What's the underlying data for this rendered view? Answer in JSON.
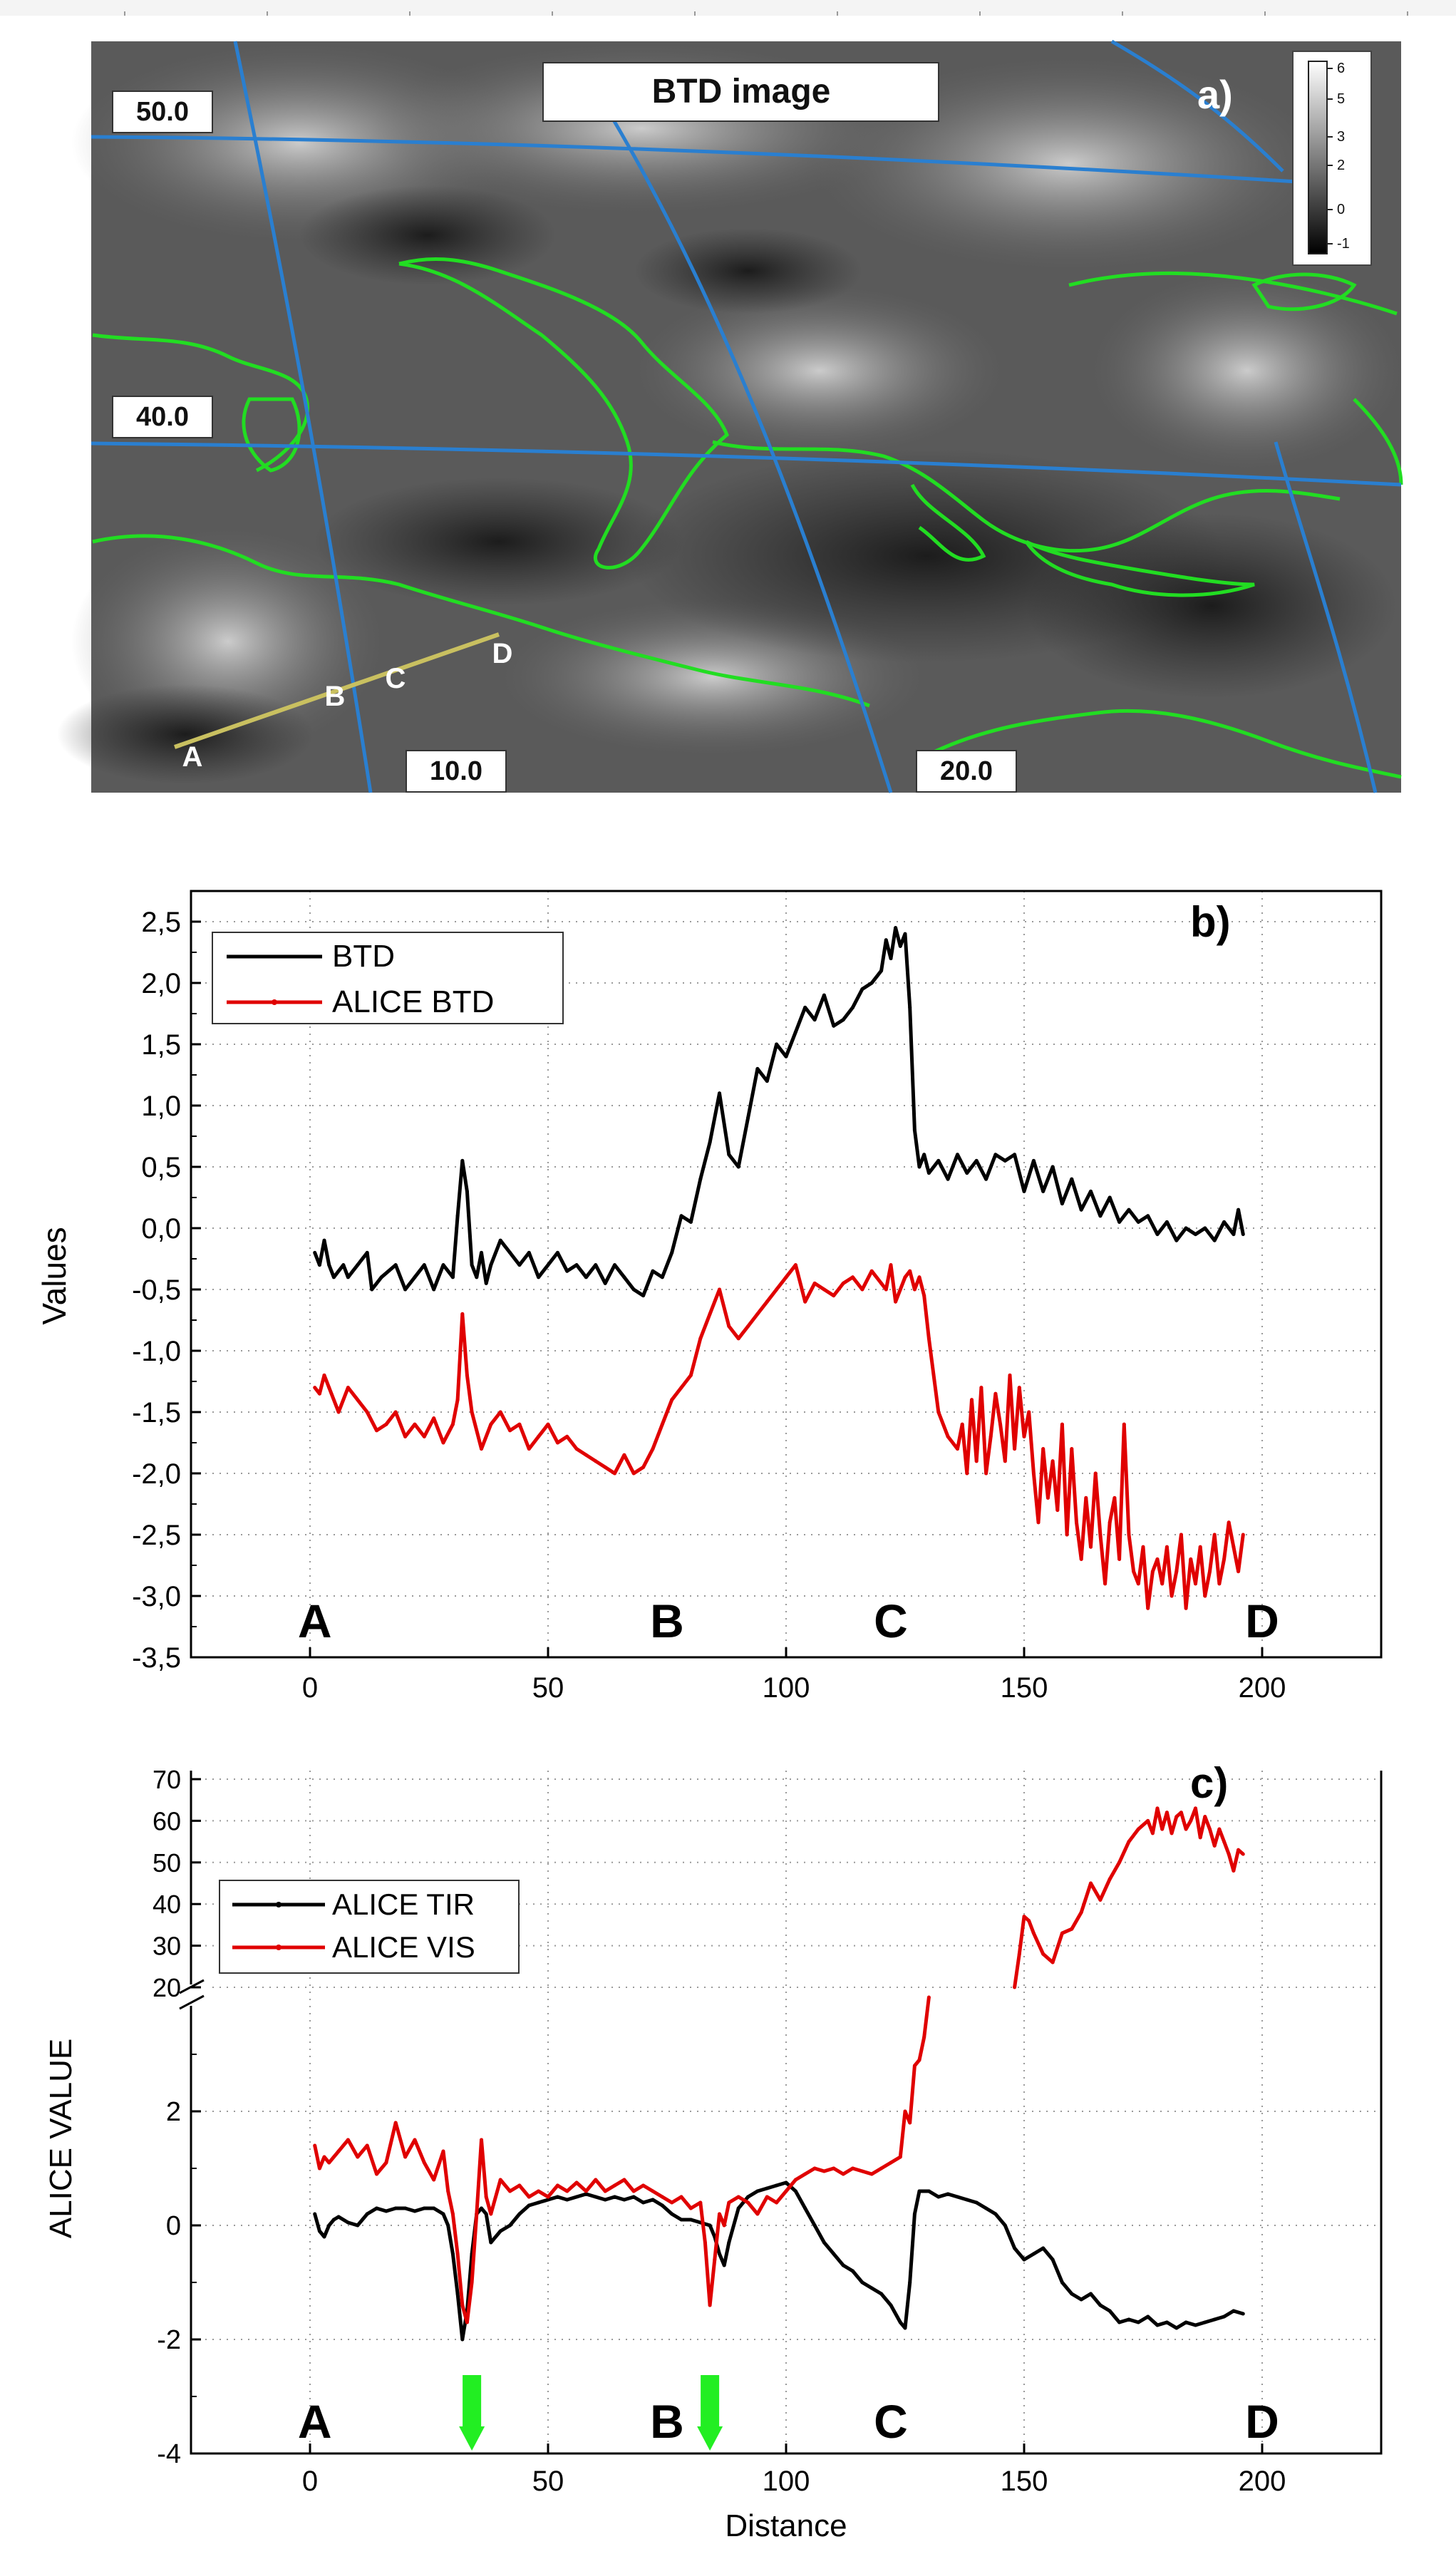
{
  "panel_a": {
    "title": "BTD image",
    "panel_label": "a)",
    "lat_labels": [
      "50.0",
      "40.0"
    ],
    "lon_labels": [
      "10.0",
      "20.0"
    ],
    "point_labels": [
      "A",
      "B",
      "C",
      "D"
    ],
    "colorbar_ticks": [
      "6",
      "5",
      "3",
      "2",
      "0",
      "-1"
    ],
    "colors": {
      "grid": "#2a7fd0",
      "coast": "#22dd22",
      "transect": "#c9c060"
    }
  },
  "chart_data": [
    {
      "type": "line",
      "panel_label": "b)",
      "xlabel": "",
      "ylabel": "Values",
      "xlim": [
        -25,
        225
      ],
      "ylim": [
        -3.5,
        2.75
      ],
      "xticks": [
        0,
        50,
        100,
        150,
        200
      ],
      "yticks": [
        -3.5,
        -3.0,
        -2.5,
        -2.0,
        -1.5,
        -1.0,
        -0.5,
        0.0,
        0.5,
        1.0,
        1.5,
        2.0,
        2.5
      ],
      "ytick_labels": [
        "-3,5",
        "-3,0",
        "-2,5",
        "-2,0",
        "-1,5",
        "-1,0",
        "-0,5",
        "0,0",
        "0,5",
        "1,0",
        "1,5",
        "2,0",
        "2,5"
      ],
      "xtick_labels": [
        "0",
        "50",
        "100",
        "150",
        "200"
      ],
      "grid": "dotted",
      "legend_position": "top-left",
      "point_labels": [
        {
          "text": "A",
          "x": 1
        },
        {
          "text": "B",
          "x": 75
        },
        {
          "text": "C",
          "x": 122
        },
        {
          "text": "D",
          "x": 200
        }
      ],
      "series": [
        {
          "name": "BTD",
          "color": "#000000",
          "x": [
            1,
            2,
            3,
            4,
            5,
            7,
            8,
            10,
            12,
            13,
            15,
            18,
            20,
            22,
            24,
            26,
            28,
            30,
            31,
            32,
            33,
            34,
            35,
            36,
            37,
            38,
            40,
            42,
            44,
            46,
            48,
            50,
            52,
            54,
            56,
            58,
            60,
            62,
            64,
            66,
            68,
            70,
            72,
            74,
            76,
            78,
            80,
            82,
            84,
            86,
            88,
            90,
            92,
            94,
            96,
            98,
            100,
            102,
            104,
            106,
            108,
            110,
            112,
            114,
            116,
            118,
            120,
            121,
            122,
            123,
            124,
            125,
            126,
            127,
            128,
            129,
            130,
            132,
            134,
            136,
            138,
            140,
            142,
            144,
            146,
            148,
            150,
            152,
            154,
            156,
            158,
            160,
            162,
            164,
            166,
            168,
            170,
            172,
            174,
            176,
            178,
            180,
            182,
            184,
            186,
            188,
            190,
            192,
            194,
            195,
            196
          ],
          "y": [
            -0.2,
            -0.3,
            -0.1,
            -0.3,
            -0.4,
            -0.3,
            -0.4,
            -0.3,
            -0.2,
            -0.5,
            -0.4,
            -0.3,
            -0.5,
            -0.4,
            -0.3,
            -0.5,
            -0.3,
            -0.4,
            0.1,
            0.55,
            0.3,
            -0.3,
            -0.4,
            -0.2,
            -0.45,
            -0.3,
            -0.1,
            -0.2,
            -0.3,
            -0.2,
            -0.4,
            -0.3,
            -0.2,
            -0.35,
            -0.3,
            -0.4,
            -0.3,
            -0.45,
            -0.3,
            -0.4,
            -0.5,
            -0.55,
            -0.35,
            -0.4,
            -0.2,
            0.1,
            0.05,
            0.4,
            0.7,
            1.1,
            0.6,
            0.5,
            0.9,
            1.3,
            1.2,
            1.5,
            1.4,
            1.6,
            1.8,
            1.7,
            1.9,
            1.65,
            1.7,
            1.8,
            1.95,
            2.0,
            2.1,
            2.35,
            2.2,
            2.45,
            2.3,
            2.4,
            1.8,
            0.8,
            0.5,
            0.6,
            0.45,
            0.55,
            0.4,
            0.6,
            0.45,
            0.55,
            0.4,
            0.6,
            0.55,
            0.6,
            0.3,
            0.55,
            0.3,
            0.5,
            0.2,
            0.4,
            0.15,
            0.3,
            0.1,
            0.25,
            0.05,
            0.15,
            0.05,
            0.1,
            -0.05,
            0.05,
            -0.1,
            0.0,
            -0.05,
            0.0,
            -0.1,
            0.05,
            -0.05,
            0.15,
            -0.05
          ]
        },
        {
          "name": "ALICE BTD",
          "color": "#e00000",
          "x": [
            1,
            2,
            3,
            4,
            6,
            8,
            10,
            12,
            14,
            16,
            18,
            20,
            22,
            24,
            26,
            28,
            30,
            31,
            32,
            33,
            34,
            36,
            38,
            40,
            42,
            44,
            46,
            48,
            50,
            52,
            54,
            56,
            58,
            60,
            62,
            64,
            66,
            68,
            70,
            72,
            74,
            76,
            78,
            80,
            82,
            84,
            86,
            88,
            90,
            92,
            94,
            96,
            98,
            100,
            102,
            104,
            106,
            108,
            110,
            112,
            114,
            116,
            118,
            120,
            121,
            122,
            123,
            124,
            125,
            126,
            127,
            128,
            129,
            130,
            132,
            134,
            136,
            137,
            138,
            139,
            140,
            141,
            142,
            143,
            144,
            145,
            146,
            147,
            148,
            149,
            150,
            151,
            152,
            153,
            154,
            155,
            156,
            157,
            158,
            159,
            160,
            161,
            162,
            163,
            164,
            165,
            166,
            167,
            168,
            169,
            170,
            171,
            172,
            173,
            174,
            175,
            176,
            177,
            178,
            179,
            180,
            181,
            182,
            183,
            184,
            185,
            186,
            187,
            188,
            189,
            190,
            191,
            192,
            193,
            194,
            195,
            196
          ],
          "y": [
            -1.3,
            -1.35,
            -1.2,
            -1.3,
            -1.5,
            -1.3,
            -1.4,
            -1.5,
            -1.65,
            -1.6,
            -1.5,
            -1.7,
            -1.6,
            -1.7,
            -1.55,
            -1.75,
            -1.6,
            -1.4,
            -0.7,
            -1.2,
            -1.5,
            -1.8,
            -1.6,
            -1.5,
            -1.65,
            -1.6,
            -1.8,
            -1.7,
            -1.6,
            -1.75,
            -1.7,
            -1.8,
            -1.85,
            -1.9,
            -1.95,
            -2.0,
            -1.85,
            -2.0,
            -1.95,
            -1.8,
            -1.6,
            -1.4,
            -1.3,
            -1.2,
            -0.9,
            -0.7,
            -0.5,
            -0.8,
            -0.9,
            -0.8,
            -0.7,
            -0.6,
            -0.5,
            -0.4,
            -0.3,
            -0.6,
            -0.45,
            -0.5,
            -0.55,
            -0.45,
            -0.4,
            -0.5,
            -0.35,
            -0.45,
            -0.5,
            -0.3,
            -0.6,
            -0.5,
            -0.4,
            -0.35,
            -0.5,
            -0.4,
            -0.55,
            -0.9,
            -1.5,
            -1.7,
            -1.8,
            -1.6,
            -2.0,
            -1.4,
            -1.9,
            -1.3,
            -2.0,
            -1.7,
            -1.35,
            -1.6,
            -1.9,
            -1.2,
            -1.8,
            -1.3,
            -1.7,
            -1.5,
            -2.0,
            -2.4,
            -1.8,
            -2.2,
            -1.9,
            -2.3,
            -1.6,
            -2.5,
            -1.8,
            -2.4,
            -2.7,
            -2.2,
            -2.6,
            -2.0,
            -2.5,
            -2.9,
            -2.4,
            -2.2,
            -2.7,
            -1.6,
            -2.5,
            -2.8,
            -2.9,
            -2.6,
            -3.1,
            -2.8,
            -2.7,
            -2.9,
            -2.6,
            -3.0,
            -2.8,
            -2.5,
            -3.1,
            -2.7,
            -2.9,
            -2.6,
            -3.0,
            -2.8,
            -2.5,
            -2.9,
            -2.7,
            -2.4,
            -2.6,
            -2.8,
            -2.5
          ]
        }
      ]
    },
    {
      "type": "line",
      "panel_label": "c)",
      "xlabel": "Distance",
      "ylabel": "ALICE VALUE",
      "xlim": [
        -25,
        225
      ],
      "y_axis_broken": true,
      "ylim_lower": [
        -4,
        4
      ],
      "ylim_upper": [
        20,
        70
      ],
      "yticks_lower": [
        -4,
        -2,
        0,
        2
      ],
      "yticks_upper": [
        20,
        30,
        40,
        50,
        60,
        70
      ],
      "xticks": [
        0,
        50,
        100,
        150,
        200
      ],
      "ytick_labels_lower": [
        "-4",
        "-2",
        "0",
        "2"
      ],
      "ytick_labels_upper": [
        "20",
        "30",
        "40",
        "50",
        "60",
        "70"
      ],
      "xtick_labels": [
        "0",
        "50",
        "100",
        "150",
        "200"
      ],
      "grid": "dotted",
      "legend_position": "top-left",
      "point_labels": [
        {
          "text": "A",
          "x": 1
        },
        {
          "text": "B",
          "x": 75
        },
        {
          "text": "C",
          "x": 122
        },
        {
          "text": "D",
          "x": 200
        }
      ],
      "markers": [
        {
          "x": 34
        },
        {
          "x": 84
        }
      ],
      "marker_color": "#22ee22",
      "series": [
        {
          "name": "ALICE TIR",
          "color": "#000000",
          "x": [
            1,
            2,
            3,
            4,
            5,
            6,
            8,
            10,
            12,
            14,
            16,
            18,
            20,
            22,
            24,
            26,
            28,
            29,
            30,
            31,
            32,
            33,
            34,
            35,
            36,
            37,
            38,
            40,
            42,
            44,
            46,
            48,
            50,
            52,
            54,
            56,
            58,
            60,
            62,
            64,
            66,
            68,
            70,
            72,
            74,
            76,
            78,
            80,
            82,
            84,
            85,
            86,
            87,
            88,
            90,
            92,
            94,
            96,
            98,
            100,
            102,
            104,
            106,
            108,
            110,
            112,
            114,
            116,
            118,
            120,
            122,
            124,
            125,
            126,
            127,
            128,
            130,
            132,
            134,
            136,
            138,
            140,
            142,
            144,
            146,
            148,
            150,
            152,
            154,
            156,
            158,
            160,
            162,
            164,
            166,
            168,
            170,
            172,
            174,
            176,
            178,
            180,
            182,
            184,
            186,
            188,
            190,
            192,
            194,
            196
          ],
          "y": [
            0.2,
            -0.1,
            -0.2,
            0.0,
            0.1,
            0.15,
            0.05,
            0.0,
            0.2,
            0.3,
            0.25,
            0.3,
            0.3,
            0.25,
            0.3,
            0.3,
            0.2,
            0.0,
            -0.5,
            -1.2,
            -2.0,
            -1.5,
            -0.5,
            0.2,
            0.3,
            0.2,
            -0.3,
            -0.1,
            0.0,
            0.2,
            0.35,
            0.4,
            0.45,
            0.5,
            0.45,
            0.5,
            0.55,
            0.5,
            0.45,
            0.5,
            0.45,
            0.5,
            0.4,
            0.45,
            0.35,
            0.2,
            0.1,
            0.1,
            0.05,
            0.0,
            -0.2,
            -0.5,
            -0.7,
            -0.3,
            0.3,
            0.5,
            0.6,
            0.65,
            0.7,
            0.75,
            0.6,
            0.3,
            0.0,
            -0.3,
            -0.5,
            -0.7,
            -0.8,
            -1.0,
            -1.1,
            -1.2,
            -1.4,
            -1.7,
            -1.8,
            -1.0,
            0.2,
            0.6,
            0.6,
            0.5,
            0.55,
            0.5,
            0.45,
            0.4,
            0.3,
            0.2,
            0.0,
            -0.4,
            -0.6,
            -0.5,
            -0.4,
            -0.6,
            -1.0,
            -1.2,
            -1.3,
            -1.2,
            -1.4,
            -1.5,
            -1.7,
            -1.65,
            -1.7,
            -1.6,
            -1.75,
            -1.7,
            -1.8,
            -1.7,
            -1.75,
            -1.7,
            -1.65,
            -1.6,
            -1.5,
            -1.55
          ]
        },
        {
          "name": "ALICE VIS",
          "color": "#e00000",
          "x": [
            1,
            2,
            3,
            4,
            6,
            8,
            10,
            12,
            14,
            16,
            18,
            20,
            22,
            24,
            26,
            28,
            29,
            30,
            31,
            32,
            33,
            34,
            35,
            36,
            37,
            38,
            40,
            42,
            44,
            46,
            48,
            50,
            52,
            54,
            56,
            58,
            60,
            62,
            64,
            66,
            68,
            70,
            72,
            74,
            76,
            78,
            80,
            82,
            83,
            84,
            85,
            86,
            87,
            88,
            90,
            92,
            94,
            96,
            98,
            100,
            102,
            104,
            106,
            108,
            110,
            112,
            114,
            116,
            118,
            120,
            122,
            124,
            125,
            126,
            127,
            128,
            129,
            130
          ],
          "y": [
            1.4,
            1.0,
            1.2,
            1.1,
            1.3,
            1.5,
            1.2,
            1.4,
            0.9,
            1.1,
            1.8,
            1.2,
            1.5,
            1.1,
            0.8,
            1.3,
            0.6,
            0.2,
            -0.5,
            -1.4,
            -1.7,
            -1.0,
            0.2,
            1.5,
            0.5,
            0.2,
            0.8,
            0.6,
            0.7,
            0.5,
            0.6,
            0.5,
            0.7,
            0.6,
            0.75,
            0.6,
            0.8,
            0.6,
            0.7,
            0.8,
            0.6,
            0.7,
            0.6,
            0.5,
            0.4,
            0.5,
            0.3,
            0.4,
            -0.3,
            -1.4,
            -0.6,
            0.2,
            0.0,
            0.4,
            0.5,
            0.4,
            0.2,
            0.5,
            0.4,
            0.6,
            0.8,
            0.9,
            1.0,
            0.95,
            1.0,
            0.9,
            1.0,
            0.95,
            0.9,
            1.0,
            1.1,
            1.2,
            2.0,
            1.8,
            2.8,
            2.9,
            3.3,
            4.0
          ]
        },
        {
          "name": "ALICE VIS (upper axis)",
          "color": "#e00000",
          "x": [
            148,
            149,
            150,
            151,
            152,
            154,
            156,
            158,
            160,
            162,
            164,
            166,
            168,
            170,
            172,
            174,
            176,
            177,
            178,
            179,
            180,
            181,
            182,
            183,
            184,
            185,
            186,
            187,
            188,
            189,
            190,
            191,
            192,
            193,
            194,
            195,
            196
          ],
          "y": [
            20,
            28,
            37,
            36,
            33,
            28,
            26,
            33,
            34,
            38,
            45,
            41,
            46,
            50,
            55,
            58,
            60,
            57,
            63,
            58,
            62,
            57,
            61,
            62,
            58,
            60,
            63,
            56,
            61,
            58,
            54,
            58,
            55,
            52,
            48,
            53,
            52
          ]
        }
      ]
    }
  ]
}
